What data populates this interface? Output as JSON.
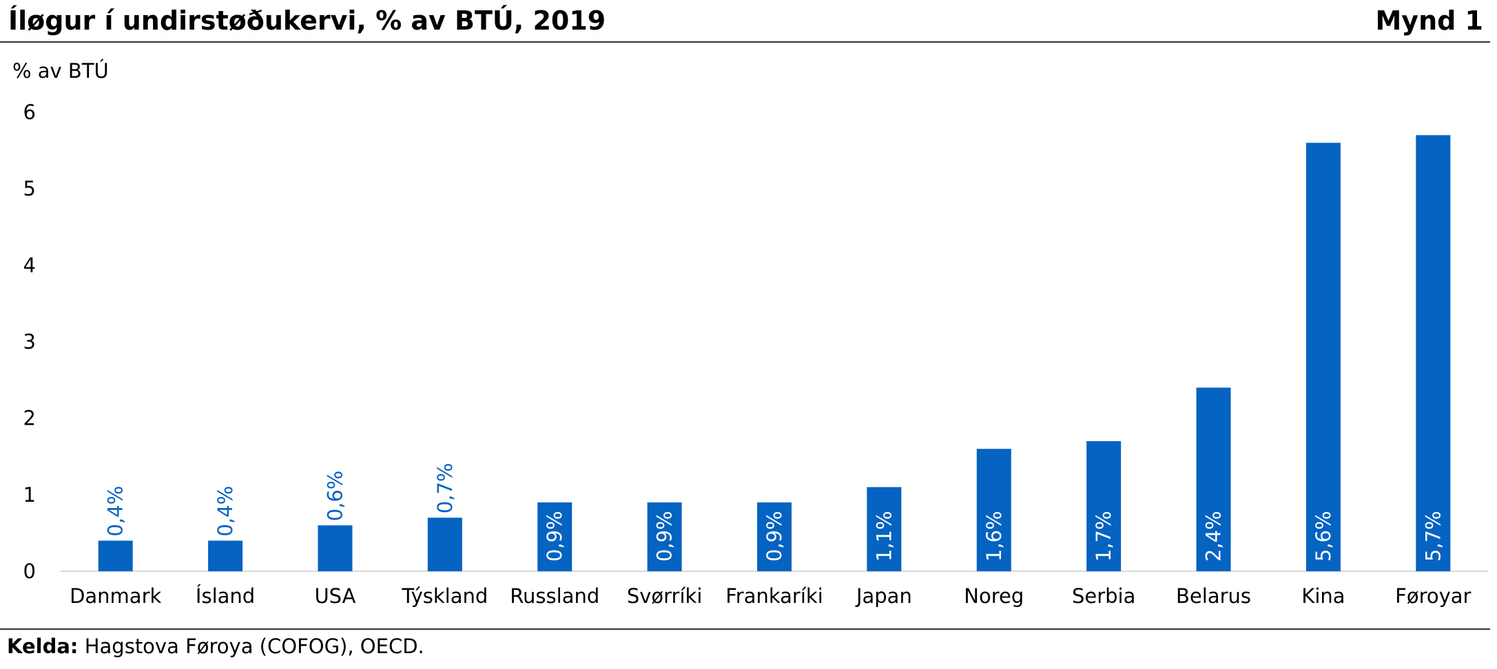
{
  "header": {
    "title": "Íløgur í undirstøðukervi, % av BTÚ, 2019",
    "figure_label": "Mynd 1"
  },
  "footer": {
    "source_label": "Kelda:",
    "source_text": " Hagstova Føroya (COFOG), OECD."
  },
  "colors": {
    "bar": "#0563C1",
    "label_outside": "#0563C1",
    "label_inside": "#ffffff",
    "axis": "#d9d9d9"
  },
  "chart_data": {
    "type": "bar",
    "title": "Íløgur í undirstøðukervi, % av BTÚ, 2019",
    "xlabel": "",
    "ylabel": "% av BTÚ",
    "ylim": [
      0,
      6
    ],
    "yticks": [
      0,
      1,
      2,
      3,
      4,
      5,
      6
    ],
    "grid": false,
    "categories": [
      "Danmark",
      "Ísland",
      "USA",
      "Týskland",
      "Russland",
      "Svørríki",
      "Frankaríki",
      "Japan",
      "Noreg",
      "Serbia",
      "Belarus",
      "Kina",
      "Føroyar"
    ],
    "values": [
      0.4,
      0.4,
      0.6,
      0.7,
      0.9,
      0.9,
      0.9,
      1.1,
      1.6,
      1.7,
      2.4,
      5.6,
      5.7
    ],
    "data_labels": [
      "0,4%",
      "0,4%",
      "0,6%",
      "0,7%",
      "0,9%",
      "0,9%",
      "0,9%",
      "1,1%",
      "1,6%",
      "1,7%",
      "2,4%",
      "5,6%",
      "5,7%"
    ]
  }
}
